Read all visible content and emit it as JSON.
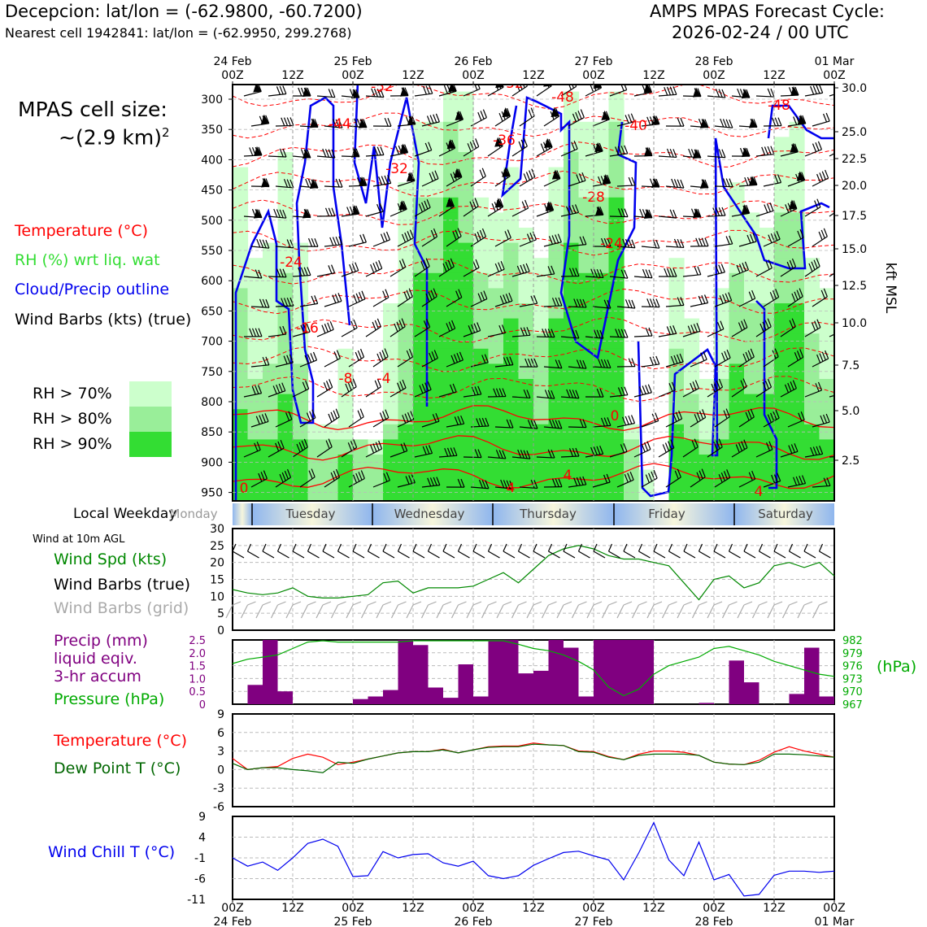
{
  "header": {
    "location": "Decepcion: lat/lon = (-62.9800, -60.7200)",
    "nearest_cell": "Nearest cell 1942841: lat/lon = (-62.9950, 299.2768)",
    "cycle_line1": "AMPS MPAS Forecast Cycle:",
    "cycle_line2": "2026-02-24 / 00 UTC"
  },
  "cell_size": {
    "line1": "MPAS cell size:",
    "line2": "~(2.9 km)",
    "sup": "2"
  },
  "legend_top": {
    "temperature": "Temperature (°C)",
    "rh": "RH (%) wrt liq. wat",
    "cloud": "Cloud/Precip outline",
    "wind": "Wind Barbs (kts) (true)",
    "rh70": "RH > 70%",
    "rh80": "RH > 80%",
    "rh90": "RH > 90%"
  },
  "colors": {
    "temp": "#ff0000",
    "rh_label": "#33dd33",
    "cloud": "#0000ee",
    "rh70": "#ccffcc",
    "rh80": "#99ee99",
    "rh90": "#33dd33",
    "precip": "#800080",
    "pressure": "#00aa00",
    "wind_spd": "#008800",
    "dew": "#006600",
    "chill": "#0000ee",
    "grid_barb": "#aaaaaa"
  },
  "time_axis": {
    "top_dates": [
      "24 Feb",
      "25 Feb",
      "26 Feb",
      "27 Feb",
      "28 Feb",
      "01 Mar"
    ],
    "hour_labels": [
      "00Z",
      "12Z",
      "00Z",
      "12Z",
      "00Z",
      "12Z",
      "00Z",
      "12Z",
      "00Z",
      "12Z",
      "00Z"
    ]
  },
  "sounding": {
    "pressure_levels": [
      "300",
      "350",
      "400",
      "450",
      "500",
      "550",
      "600",
      "650",
      "700",
      "750",
      "800",
      "850",
      "900",
      "950"
    ],
    "kft_labels": [
      "30.0",
      "25.0",
      "22.5",
      "20.0",
      "17.5",
      "15.0",
      "12.5",
      "10.0",
      "7.5",
      "5.0",
      "2.5"
    ],
    "kft_title": "kft MSL",
    "temp_labels": [
      "-52",
      "-52",
      "-48",
      "-48",
      "-44",
      "-40",
      "-36",
      "-32",
      "-28",
      "-24",
      "-24",
      "-16",
      "-8",
      "-4",
      "0",
      "4",
      "4",
      "4",
      "0"
    ]
  },
  "weekday": {
    "title": "Local Weekday",
    "days": [
      "Monday",
      "Tuesday",
      "Wednesday",
      "Thursday",
      "Friday",
      "Saturday"
    ]
  },
  "wind_panel": {
    "title": "Wind at 10m AGL",
    "spd_label": "Wind Spd (kts)",
    "barbs_true": "Wind Barbs (true)",
    "barbs_grid": "Wind Barbs (grid)",
    "y_ticks": [
      "30",
      "25",
      "20",
      "15",
      "10",
      "5",
      "0"
    ]
  },
  "precip_panel": {
    "label1": "Precip (mm)",
    "label2": "liquid eqiv.",
    "label3": "3-hr accum",
    "pressure_label": "Pressure (hPa)",
    "hpa_unit": "(hPa)",
    "y_ticks": [
      "2.5",
      "2.0",
      "1.5",
      "1.0",
      "0.5",
      "0"
    ],
    "right_ticks": [
      "982",
      "979",
      "976",
      "973",
      "970",
      "967"
    ]
  },
  "temp_panel": {
    "temp_label": "Temperature (°C)",
    "dew_label": "Dew Point T (°C)",
    "y_ticks": [
      "9",
      "6",
      "3",
      "0",
      "-3",
      "-6"
    ]
  },
  "chill_panel": {
    "label": "Wind Chill T (°C)",
    "y_ticks": [
      "9",
      "4",
      "-1",
      "-6",
      "-11"
    ]
  },
  "chart_data": [
    {
      "type": "line",
      "title": "Wind at 10m AGL",
      "ylabel": "Wind Spd (kts)",
      "ylim": [
        0,
        30
      ],
      "x": [
        0,
        3,
        6,
        9,
        12,
        15,
        18,
        21,
        24,
        27,
        30,
        33,
        36,
        39,
        42,
        45,
        48,
        51,
        54,
        57,
        60,
        63,
        66,
        69,
        72,
        75,
        78,
        81,
        84,
        87,
        90,
        93,
        96,
        99,
        102,
        105,
        108,
        111,
        114,
        117,
        120
      ],
      "series": [
        {
          "name": "Wind Spd (kts)",
          "values": [
            12,
            11,
            10.5,
            11,
            12.5,
            10,
            9.5,
            9.5,
            10,
            10.5,
            14,
            14.5,
            11,
            12.5,
            12.5,
            12.5,
            13,
            15,
            17,
            14,
            18,
            22,
            24,
            25,
            24,
            22,
            21,
            21,
            20,
            19,
            14,
            9,
            15,
            16,
            12.5,
            14,
            19,
            20,
            18.5,
            20,
            16
          ]
        }
      ]
    },
    {
      "type": "bar",
      "title": "Precip (mm) liquid eqiv. 3-hr accum",
      "ylim": [
        0,
        2.5
      ],
      "x": [
        0,
        3,
        6,
        9,
        12,
        15,
        18,
        21,
        24,
        27,
        30,
        33,
        36,
        39,
        42,
        45,
        48,
        51,
        54,
        57,
        60,
        63,
        66,
        69,
        72,
        75,
        78,
        81,
        84,
        87,
        90,
        93,
        96,
        99,
        102,
        105,
        108,
        111,
        114,
        117
      ],
      "values": [
        0,
        0.75,
        2.5,
        0.5,
        0,
        0,
        0,
        0,
        0.2,
        0.3,
        0.55,
        2.5,
        2.3,
        0.65,
        0.25,
        1.55,
        0.3,
        2.5,
        2.5,
        1.2,
        1.3,
        2.5,
        2.2,
        0.3,
        2.5,
        2.5,
        2.5,
        2.5,
        0,
        0,
        0,
        0.05,
        0,
        1.7,
        0.85,
        0,
        0,
        0.4,
        2.2,
        0.3
      ]
    },
    {
      "type": "line",
      "title": "Pressure (hPa)",
      "ylim": [
        967,
        982
      ],
      "x": [
        0,
        3,
        6,
        9,
        12,
        15,
        18,
        21,
        24,
        27,
        30,
        33,
        36,
        39,
        42,
        45,
        48,
        51,
        54,
        57,
        60,
        63,
        66,
        69,
        72,
        75,
        78,
        81,
        84,
        87,
        90,
        93,
        96,
        99,
        102,
        105,
        108,
        111,
        114,
        117,
        120
      ],
      "series": [
        {
          "name": "Pressure (hPa)",
          "values": [
            976.5,
            977.5,
            978,
            978.5,
            980,
            981.5,
            982,
            981.5,
            981.5,
            981.5,
            981.5,
            981.5,
            982.5,
            982.5,
            982,
            982,
            982.5,
            982.5,
            982,
            981,
            980,
            979.5,
            978.5,
            977,
            975,
            971,
            969,
            970.5,
            974,
            976,
            977,
            978,
            980,
            980.5,
            979.5,
            978.5,
            977,
            976,
            975,
            974,
            973.5
          ]
        }
      ]
    },
    {
      "type": "line",
      "title": "Temperature / Dew Point",
      "ylim": [
        -6,
        9
      ],
      "x": [
        0,
        3,
        6,
        9,
        12,
        15,
        18,
        21,
        24,
        27,
        30,
        33,
        36,
        39,
        42,
        45,
        48,
        51,
        54,
        57,
        60,
        63,
        66,
        69,
        72,
        75,
        78,
        81,
        84,
        87,
        90,
        93,
        96,
        99,
        102,
        105,
        108,
        111,
        114,
        117,
        120
      ],
      "series": [
        {
          "name": "Temperature (°C)",
          "values": [
            1.8,
            0,
            0.3,
            0.5,
            1.8,
            2.5,
            2,
            0.8,
            1.2,
            1.7,
            2.2,
            2.7,
            2.9,
            2.9,
            3.3,
            2.7,
            3.2,
            3.7,
            3.8,
            3.8,
            4.3,
            4,
            3.9,
            3,
            2.9,
            2.1,
            1.6,
            2.5,
            3,
            3,
            2.8,
            2.3,
            1.2,
            0.9,
            0.8,
            1.5,
            2.8,
            3.7,
            3,
            2.5,
            2
          ]
        },
        {
          "name": "Dew Point T (°C)",
          "values": [
            1,
            0,
            0.3,
            0.3,
            0,
            -0.2,
            -0.5,
            1.2,
            1,
            1.7,
            2.2,
            2.7,
            2.9,
            2.9,
            3.2,
            2.7,
            3.2,
            3.6,
            3.7,
            3.7,
            4.1,
            4,
            3.9,
            2.9,
            2.8,
            2,
            1.6,
            2.3,
            2.5,
            2.5,
            2.5,
            2.3,
            1.2,
            0.9,
            0.8,
            1.2,
            2.5,
            2.5,
            2.4,
            2.2,
            2
          ]
        }
      ]
    },
    {
      "type": "line",
      "title": "Wind Chill T (°C)",
      "ylim": [
        -11,
        9
      ],
      "x": [
        0,
        3,
        6,
        9,
        12,
        15,
        18,
        21,
        24,
        27,
        30,
        33,
        36,
        39,
        42,
        45,
        48,
        51,
        54,
        57,
        60,
        63,
        66,
        69,
        72,
        75,
        78,
        81,
        84,
        87,
        90,
        93,
        96,
        99,
        102,
        105,
        108,
        111,
        114,
        117,
        120
      ],
      "series": [
        {
          "name": "Wind Chill T (°C)",
          "values": [
            -1,
            -3,
            -2,
            -4,
            -1,
            2.5,
            3.5,
            1.8,
            -5.5,
            -5.3,
            0.5,
            -1,
            -0.2,
            0,
            -2.2,
            -3,
            -1.8,
            -5.3,
            -6,
            -5.3,
            -2.8,
            -1.2,
            0.3,
            0.6,
            -0.5,
            -1.5,
            -6.3,
            0.2,
            7.5,
            -1.5,
            -5.3,
            2.8,
            -6.3,
            -5,
            -10.2,
            -9.8,
            -5.2,
            -4.2,
            -4.2,
            -4.5,
            -4.2
          ]
        }
      ]
    },
    {
      "type": "heatmap",
      "title": "Time-height cross section (RH, Temperature, Cloud, Wind)",
      "xlabel": "Time (UTC)",
      "ylabel": "Pressure (hPa)",
      "ylim": [
        950,
        300
      ],
      "categories": [
        "RH > 70%",
        "RH > 80%",
        "RH > 90%"
      ]
    }
  ]
}
